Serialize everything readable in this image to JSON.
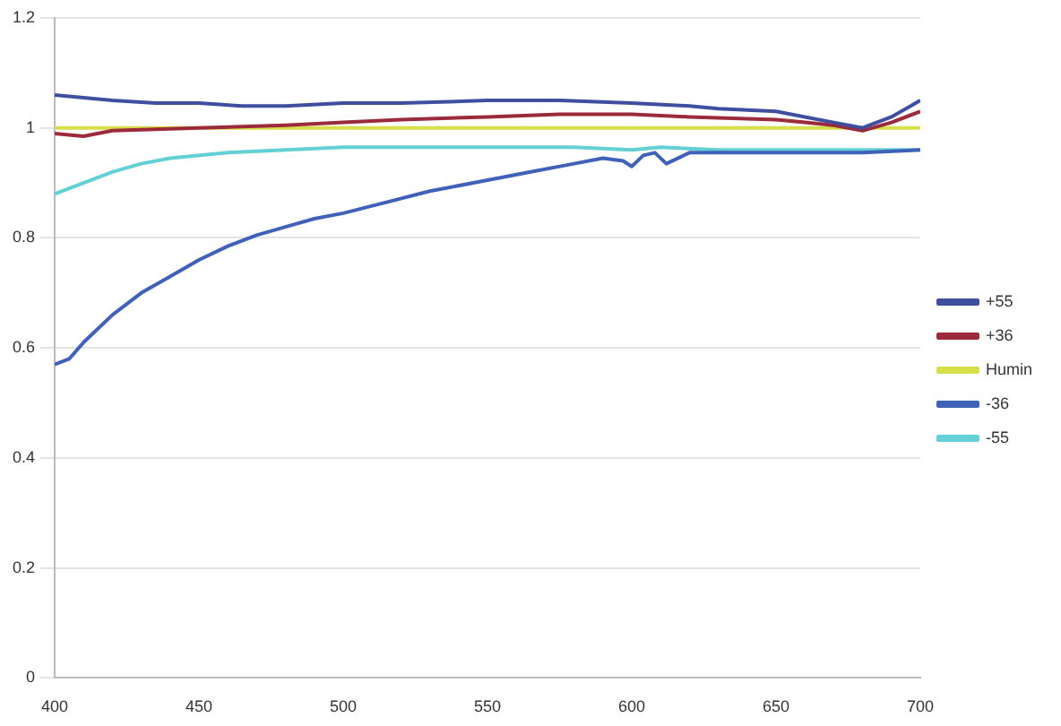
{
  "chart_data": {
    "type": "line",
    "xlim": [
      400,
      700
    ],
    "xticks": [
      400,
      450,
      500,
      550,
      600,
      650,
      700
    ],
    "ylim": [
      0,
      1.2
    ],
    "yticks": [
      0,
      0.2,
      0.4,
      0.6,
      0.8,
      1,
      1.2
    ],
    "grid": "y",
    "legend": "right",
    "marker": "none",
    "line_style": "solid",
    "series": [
      {
        "name": "+55",
        "color": "#3f4f9f",
        "x": [
          400,
          410,
          420,
          435,
          450,
          465,
          480,
          500,
          520,
          550,
          575,
          600,
          620,
          630,
          650,
          660,
          670,
          680,
          690,
          700
        ],
        "values": [
          1.06,
          1.055,
          1.05,
          1.045,
          1.045,
          1.04,
          1.04,
          1.045,
          1.045,
          1.05,
          1.05,
          1.045,
          1.04,
          1.035,
          1.03,
          1.02,
          1.01,
          1,
          1.02,
          1.05
        ]
      },
      {
        "name": "+36",
        "color": "#9b2a3a",
        "x": [
          400,
          410,
          420,
          450,
          480,
          500,
          520,
          550,
          575,
          600,
          620,
          650,
          660,
          670,
          680,
          690,
          700
        ],
        "values": [
          0.99,
          0.985,
          0.995,
          1,
          1.005,
          1.01,
          1.015,
          1.02,
          1.025,
          1.025,
          1.02,
          1.015,
          1.01,
          1.005,
          0.995,
          1.01,
          1.03
        ]
      },
      {
        "name": "Humin",
        "color": "#d6df4a",
        "x": [
          400,
          700
        ],
        "values": [
          1,
          1
        ]
      },
      {
        "name": "-36",
        "color": "#3f62b8",
        "x": [
          400,
          405,
          410,
          420,
          430,
          440,
          450,
          460,
          470,
          480,
          490,
          500,
          515,
          530,
          550,
          565,
          580,
          590,
          597,
          600,
          604,
          608,
          612,
          620,
          640,
          660,
          680,
          700
        ],
        "values": [
          0.57,
          0.58,
          0.61,
          0.66,
          0.7,
          0.73,
          0.76,
          0.785,
          0.805,
          0.82,
          0.835,
          0.845,
          0.865,
          0.885,
          0.905,
          0.92,
          0.935,
          0.945,
          0.94,
          0.93,
          0.95,
          0.955,
          0.935,
          0.955,
          0.955,
          0.955,
          0.955,
          0.96
        ]
      },
      {
        "name": "-55",
        "color": "#62d0d4",
        "x": [
          400,
          410,
          420,
          430,
          440,
          460,
          480,
          500,
          520,
          550,
          580,
          600,
          610,
          630,
          650,
          680,
          700
        ],
        "values": [
          0.88,
          0.9,
          0.92,
          0.935,
          0.945,
          0.955,
          0.96,
          0.965,
          0.965,
          0.965,
          0.965,
          0.96,
          0.965,
          0.96,
          0.96,
          0.96,
          0.96
        ]
      }
    ]
  }
}
